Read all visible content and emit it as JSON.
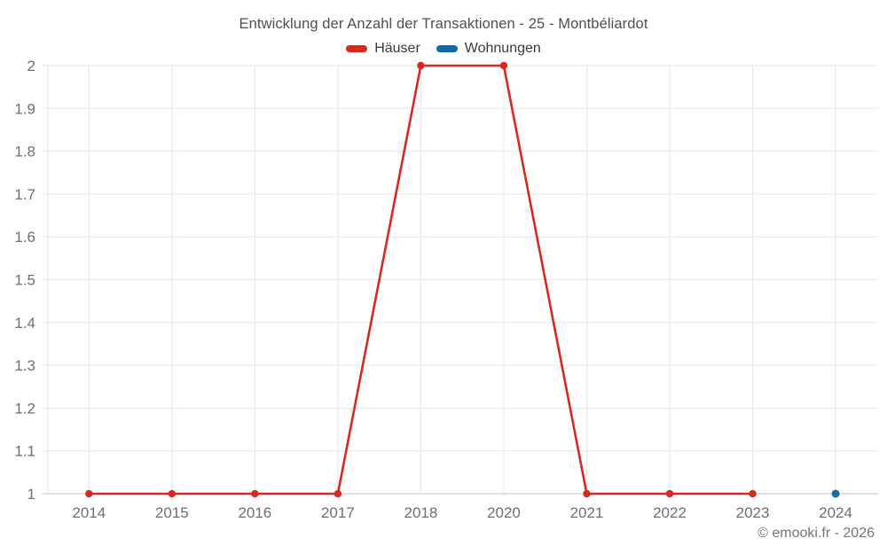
{
  "chart_data": {
    "type": "line",
    "title": "Entwicklung der Anzahl der Transaktionen - 25 - Montbéliardot",
    "categories": [
      "2014",
      "2015",
      "2016",
      "2017",
      "2018",
      "2020",
      "2021",
      "2022",
      "2023",
      "2024"
    ],
    "series": [
      {
        "name": "Häuser",
        "color": "#d9291f",
        "marker_radius": 4.2,
        "values": [
          1,
          1,
          1,
          1,
          2,
          2,
          1,
          1,
          1,
          null
        ]
      },
      {
        "name": "Wohnungen",
        "color": "#106ba8",
        "marker_radius": 4.5,
        "values": [
          null,
          null,
          null,
          null,
          null,
          null,
          null,
          null,
          null,
          1
        ]
      }
    ],
    "xlabel": "",
    "ylabel": "",
    "ylim": [
      1,
      2
    ],
    "ytick_labels": [
      "1",
      "1.1",
      "1.2",
      "1.3",
      "1.4",
      "1.5",
      "1.6",
      "1.7",
      "1.8",
      "1.9",
      "2"
    ],
    "grid": "on",
    "legend_position": "top",
    "style": {
      "grid_color": "#e7e7e7",
      "axis_line_color": "#cfcfcf",
      "tick_text_color": "#6f6f6f",
      "title_color": "#4f4f4f",
      "legend_text_color": "#3a3a3a",
      "footer_color": "#757575",
      "background": "#ffffff"
    }
  },
  "footer": {
    "text": "© emooki.fr - 2026"
  }
}
